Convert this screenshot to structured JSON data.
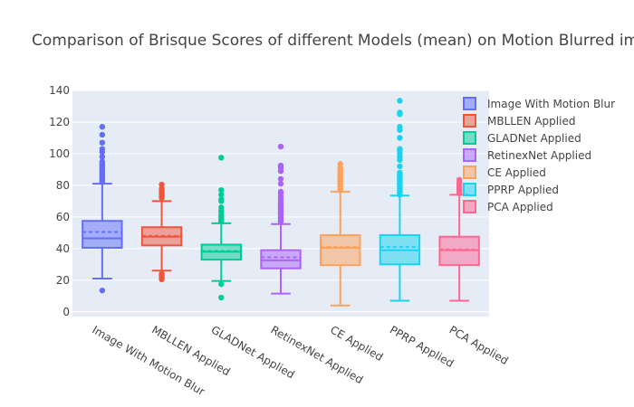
{
  "chart_data": {
    "type": "box",
    "title": "Comparison of Brisque Scores of different Models (mean) on Motion Blurred images",
    "xlabel": "",
    "ylabel": "",
    "ylim": [
      -3,
      140
    ],
    "yticks": [
      0,
      20,
      40,
      60,
      80,
      100,
      120,
      140
    ],
    "grid": true,
    "legend_position": "right",
    "series": [
      {
        "name": "Image With Motion Blur",
        "color": "#636efa",
        "q1": 40.5,
        "median": 46.5,
        "q3": 57.5,
        "mean": 50.5,
        "lower_fence": 21,
        "upper_fence": 81,
        "outliers": [
          13.5,
          82,
          83,
          84,
          85,
          86,
          87,
          88,
          89,
          90,
          91,
          92,
          93,
          94,
          95,
          98,
          101,
          103,
          107,
          112,
          117
        ]
      },
      {
        "name": "MBLLEN Applied",
        "color": "#ef553b",
        "q1": 42,
        "median": 47.5,
        "q3": 53.5,
        "mean": 48,
        "lower_fence": 26,
        "upper_fence": 70,
        "outliers": [
          20.5,
          21,
          22,
          23,
          24,
          72,
          73,
          74,
          75,
          76,
          77,
          78,
          80.5
        ]
      },
      {
        "name": "GLADNet Applied",
        "color": "#00cc96",
        "q1": 33,
        "median": 38,
        "q3": 42.5,
        "mean": 38.5,
        "lower_fence": 19.5,
        "upper_fence": 56,
        "outliers": [
          9,
          17.5,
          57,
          58,
          59,
          60,
          61,
          63,
          64,
          66,
          70,
          71,
          74,
          77,
          97.5
        ]
      },
      {
        "name": "RetinexNet Applied",
        "color": "#ab63fa",
        "q1": 27.5,
        "median": 32.5,
        "q3": 39,
        "mean": 34.5,
        "lower_fence": 11.5,
        "upper_fence": 55.5,
        "outliers": [
          57,
          58,
          59,
          60,
          61,
          62,
          63,
          64,
          65,
          66,
          67,
          68,
          69,
          70,
          71,
          73,
          75,
          76,
          81,
          84,
          89,
          91,
          92.5,
          104.5
        ]
      },
      {
        "name": "CE Applied",
        "color": "#ffa15a",
        "q1": 29.5,
        "median": 40.5,
        "q3": 48.5,
        "mean": 41,
        "lower_fence": 4,
        "upper_fence": 76,
        "outliers": [
          77,
          78,
          79,
          80,
          81,
          82,
          83,
          84,
          85,
          86,
          87,
          88,
          89,
          90,
          91,
          93.5
        ]
      },
      {
        "name": "PPRP Applied",
        "color": "#19d3f3",
        "q1": 30,
        "median": 39,
        "q3": 48.5,
        "mean": 41,
        "lower_fence": 7,
        "upper_fence": 73.5,
        "outliers": [
          74,
          75,
          76,
          77,
          78,
          79,
          80,
          81,
          82,
          83,
          84,
          85,
          86,
          87,
          88,
          92,
          96,
          98,
          100,
          102,
          103,
          110,
          115,
          117,
          125,
          126,
          133.5
        ]
      },
      {
        "name": "PCA Applied",
        "color": "#ff6692",
        "q1": 29.5,
        "median": 39,
        "q3": 47.5,
        "mean": 39.5,
        "lower_fence": 7,
        "upper_fence": 74,
        "outliers": [
          75,
          76,
          77,
          78,
          79,
          80,
          81,
          82,
          83.5
        ]
      }
    ]
  }
}
